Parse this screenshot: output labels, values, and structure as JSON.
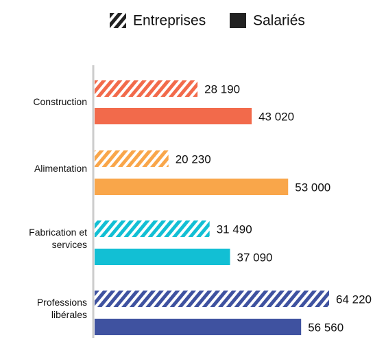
{
  "chart_data": {
    "type": "hbar-grouped",
    "categories": [
      "Construction",
      "Alimentation",
      "Fabrication et services",
      "Professions libérales"
    ],
    "colors": [
      "#f26a4b",
      "#f9a64a",
      "#12bfd4",
      "#3f52a0"
    ],
    "legend_color": "#222222",
    "series": [
      {
        "name": "Entreprises",
        "pattern": "hatched",
        "values": [
          28190,
          20230,
          31490,
          64220
        ],
        "value_labels": [
          "28 190",
          "20 230",
          "31 490",
          "64 220"
        ]
      },
      {
        "name": "Salariés",
        "pattern": "solid",
        "values": [
          43020,
          53000,
          37090,
          56560
        ],
        "value_labels": [
          "43 020",
          "53 000",
          "37 090",
          "56 560"
        ]
      }
    ]
  }
}
